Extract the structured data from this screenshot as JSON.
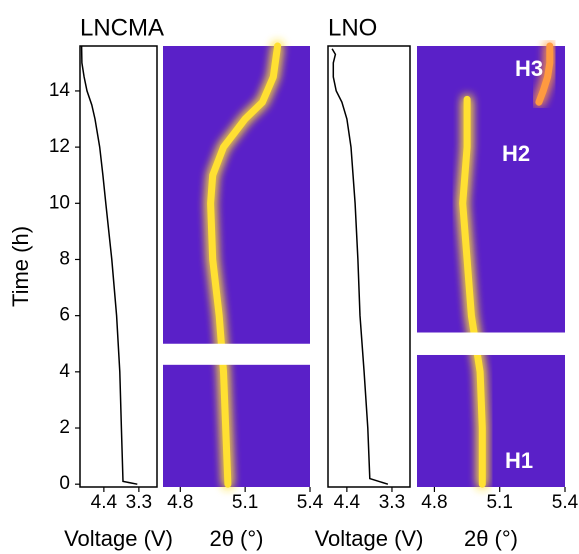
{
  "chart_data": [
    {
      "type": "line",
      "title": "LNCMA",
      "xlabel": "Voltage (V)",
      "ylabel": "Time (h)",
      "xlim": [
        5.15,
        2.73
      ],
      "xticks": [
        4.4,
        3.3
      ],
      "ylim": [
        -0.1,
        15.6
      ],
      "yticks": [
        0,
        2,
        4,
        6,
        8,
        10,
        12,
        14
      ],
      "series": [
        {
          "color": "#000000",
          "y": [
            0,
            0.1,
            2,
            4,
            6,
            8,
            10,
            11,
            12,
            13,
            13.5,
            14,
            14.5,
            15,
            15.6
          ],
          "values": [
            3.35,
            3.8,
            3.85,
            3.9,
            4.0,
            4.15,
            4.34,
            4.43,
            4.53,
            4.68,
            4.78,
            4.93,
            5.02,
            5.09,
            5.1
          ]
        }
      ]
    },
    {
      "type": "peak-map",
      "xlabel": "2θ (°)",
      "xlim": [
        4.72,
        5.4
      ],
      "xticks": [
        4.8,
        5.1,
        5.4
      ],
      "ylim": [
        -0.1,
        15.6
      ],
      "background": "#5a20c8",
      "gap": [
        4.25,
        5.0
      ],
      "series": [
        {
          "color": "#ffe033",
          "y": [
            0,
            2,
            4,
            6,
            8,
            10,
            11,
            12,
            12.5,
            13,
            13.6,
            14.5,
            15.6
          ],
          "values": [
            5.02,
            5.01,
            5.0,
            4.98,
            4.95,
            4.94,
            4.95,
            5.0,
            5.05,
            5.1,
            5.18,
            5.23,
            5.25
          ]
        }
      ]
    },
    {
      "type": "line",
      "title": "LNO",
      "xlabel": "Voltage (V)",
      "xlim": [
        4.86,
        2.86
      ],
      "xticks": [
        4.4,
        3.3
      ],
      "ylim": [
        -0.1,
        15.6
      ],
      "series": [
        {
          "color": "#000000",
          "y": [
            0,
            0.2,
            2,
            4,
            6,
            8,
            10,
            12,
            13,
            13.6,
            14,
            14.5,
            15,
            15.3,
            15.5
          ],
          "values": [
            3.4,
            3.84,
            3.89,
            3.98,
            4.08,
            4.13,
            4.2,
            4.3,
            4.4,
            4.52,
            4.66,
            4.73,
            4.73,
            4.68,
            4.76
          ]
        }
      ]
    },
    {
      "type": "peak-map",
      "xlabel": "2θ (°)",
      "xlim": [
        4.72,
        5.4
      ],
      "xticks": [
        4.8,
        5.1,
        5.4
      ],
      "ylim": [
        -0.1,
        15.6
      ],
      "background": "#5a20c8",
      "gap": [
        4.6,
        5.4
      ],
      "annotations": [
        "H3",
        "H2",
        "H1"
      ],
      "series": [
        {
          "color": "#ffe033",
          "y": [
            0,
            2,
            4,
            6,
            8,
            10,
            11,
            12,
            13,
            13.7
          ],
          "values": [
            5.02,
            5.02,
            5.01,
            4.97,
            4.95,
            4.93,
            4.94,
            4.95,
            4.95,
            4.95
          ]
        },
        {
          "color": "#ff9a40",
          "y": [
            13.6,
            14,
            14.5,
            15,
            15.6
          ],
          "values": [
            5.28,
            5.3,
            5.32,
            5.33,
            5.33
          ]
        }
      ]
    }
  ]
}
